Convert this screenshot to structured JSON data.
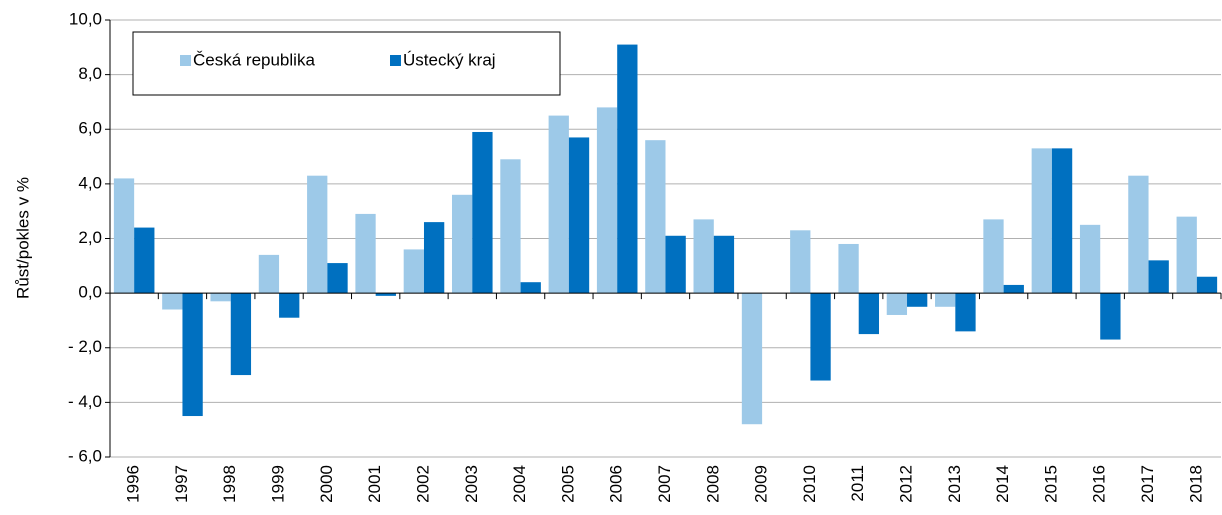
{
  "chart_data": {
    "type": "bar",
    "ylabel": "Růst/pokles v %",
    "categories": [
      "1996",
      "1997",
      "1998",
      "1999",
      "2000",
      "2001",
      "2002",
      "2003",
      "2004",
      "2005",
      "2006",
      "2007",
      "2008",
      "2009",
      "2010",
      "2011",
      "2012",
      "2013",
      "2014",
      "2015",
      "2016",
      "2017",
      "2018"
    ],
    "series": [
      {
        "name": "Česká republika",
        "color": "#9dc9e8",
        "values": [
          4.2,
          -0.6,
          -0.3,
          1.4,
          4.3,
          2.9,
          1.6,
          3.6,
          4.9,
          6.5,
          6.8,
          5.6,
          2.7,
          -4.8,
          2.3,
          1.8,
          -0.8,
          -0.5,
          2.7,
          5.3,
          2.5,
          4.3,
          2.8
        ]
      },
      {
        "name": "Ústecký kraj",
        "color": "#0070c0",
        "values": [
          2.4,
          -4.5,
          -3.0,
          -0.9,
          1.1,
          -0.1,
          2.6,
          5.9,
          0.4,
          5.7,
          9.1,
          2.1,
          2.1,
          0.0,
          -3.2,
          -1.5,
          -0.5,
          -1.4,
          0.3,
          5.3,
          -1.7,
          1.2,
          0.6
        ]
      }
    ],
    "ylim": [
      -6,
      10
    ],
    "yticks": [
      {
        "value": -6,
        "label": "- 6,0"
      },
      {
        "value": -4,
        "label": "- 4,0"
      },
      {
        "value": -2,
        "label": "- 2,0"
      },
      {
        "value": 0,
        "label": "0,0"
      },
      {
        "value": 2,
        "label": "2,0"
      },
      {
        "value": 4,
        "label": "4,0"
      },
      {
        "value": 6,
        "label": "6,0"
      },
      {
        "value": 8,
        "label": "8,0"
      },
      {
        "value": 10,
        "label": "10,0"
      }
    ],
    "grid": true,
    "legend": "top-left"
  }
}
